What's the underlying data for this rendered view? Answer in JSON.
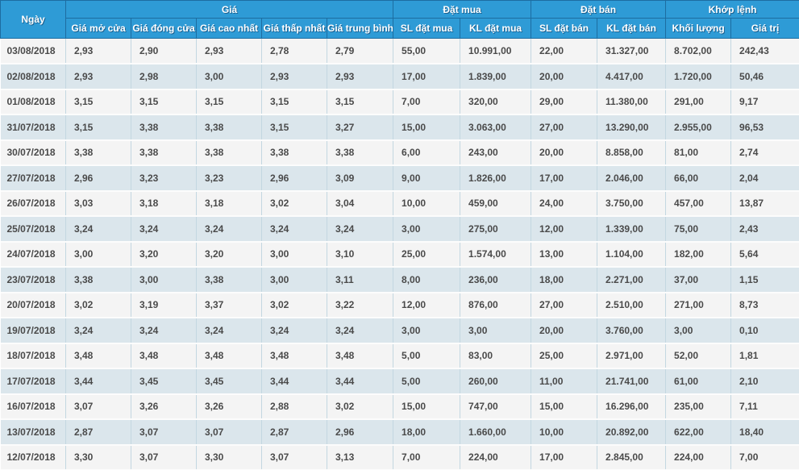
{
  "colors": {
    "header_bg": "#2e9bd6",
    "header_text": "#ffffff",
    "header_border": "#1d6da1",
    "row_odd_bg": "#f4f4f4",
    "row_even_bg": "#dbe6ec",
    "cell_border": "#c3d7e1",
    "body_text": "#4a4a4a"
  },
  "table": {
    "header_groups": [
      {
        "label": "Ngày",
        "colspan": 1,
        "rowspan": 2
      },
      {
        "label": "Giá",
        "colspan": 5,
        "rowspan": 1
      },
      {
        "label": "Đặt mua",
        "colspan": 2,
        "rowspan": 1
      },
      {
        "label": "Đặt bán",
        "colspan": 2,
        "rowspan": 1
      },
      {
        "label": "Khớp lệnh",
        "colspan": 2,
        "rowspan": 1
      }
    ],
    "sub_headers": [
      "Giá mở cửa",
      "Giá đóng cửa",
      "Giá cao nhất",
      "Giá thấp nhất",
      "Giá trung bình",
      "SL đặt mua",
      "KL đặt mua",
      "SL đặt bán",
      "KL đặt bán",
      "Khối lượng",
      "Giá trị"
    ],
    "rows": [
      [
        "03/08/2018",
        "2,93",
        "2,90",
        "2,93",
        "2,78",
        "2,79",
        "55,00",
        "10.991,00",
        "22,00",
        "31.327,00",
        "8.702,00",
        "242,43"
      ],
      [
        "02/08/2018",
        "2,93",
        "2,98",
        "3,00",
        "2,93",
        "2,93",
        "17,00",
        "1.839,00",
        "20,00",
        "4.417,00",
        "1.720,00",
        "50,46"
      ],
      [
        "01/08/2018",
        "3,15",
        "3,15",
        "3,15",
        "3,15",
        "3,15",
        "7,00",
        "320,00",
        "29,00",
        "11.380,00",
        "291,00",
        "9,17"
      ],
      [
        "31/07/2018",
        "3,15",
        "3,38",
        "3,38",
        "3,15",
        "3,27",
        "15,00",
        "3.063,00",
        "27,00",
        "13.290,00",
        "2.955,00",
        "96,53"
      ],
      [
        "30/07/2018",
        "3,38",
        "3,38",
        "3,38",
        "3,38",
        "3,38",
        "6,00",
        "243,00",
        "20,00",
        "8.858,00",
        "81,00",
        "2,74"
      ],
      [
        "27/07/2018",
        "2,96",
        "3,23",
        "3,23",
        "2,96",
        "3,09",
        "9,00",
        "1.826,00",
        "17,00",
        "2.046,00",
        "66,00",
        "2,04"
      ],
      [
        "26/07/2018",
        "3,03",
        "3,18",
        "3,18",
        "3,02",
        "3,04",
        "10,00",
        "459,00",
        "24,00",
        "3.750,00",
        "457,00",
        "13,87"
      ],
      [
        "25/07/2018",
        "3,24",
        "3,24",
        "3,24",
        "3,24",
        "3,24",
        "3,00",
        "275,00",
        "12,00",
        "1.339,00",
        "75,00",
        "2,43"
      ],
      [
        "24/07/2018",
        "3,00",
        "3,20",
        "3,20",
        "3,00",
        "3,10",
        "25,00",
        "1.574,00",
        "13,00",
        "1.104,00",
        "182,00",
        "5,64"
      ],
      [
        "23/07/2018",
        "3,38",
        "3,00",
        "3,38",
        "3,00",
        "3,11",
        "8,00",
        "236,00",
        "18,00",
        "2.271,00",
        "37,00",
        "1,15"
      ],
      [
        "20/07/2018",
        "3,02",
        "3,19",
        "3,37",
        "3,02",
        "3,22",
        "12,00",
        "876,00",
        "27,00",
        "2.510,00",
        "271,00",
        "8,73"
      ],
      [
        "19/07/2018",
        "3,24",
        "3,24",
        "3,24",
        "3,24",
        "3,24",
        "3,00",
        "3,00",
        "20,00",
        "3.760,00",
        "3,00",
        "0,10"
      ],
      [
        "18/07/2018",
        "3,48",
        "3,48",
        "3,48",
        "3,48",
        "3,48",
        "5,00",
        "83,00",
        "25,00",
        "2.971,00",
        "52,00",
        "1,81"
      ],
      [
        "17/07/2018",
        "3,44",
        "3,45",
        "3,45",
        "3,44",
        "3,44",
        "5,00",
        "260,00",
        "11,00",
        "21.741,00",
        "61,00",
        "2,10"
      ],
      [
        "16/07/2018",
        "3,07",
        "3,26",
        "3,26",
        "2,88",
        "3,02",
        "15,00",
        "747,00",
        "15,00",
        "16.296,00",
        "235,00",
        "7,11"
      ],
      [
        "13/07/2018",
        "2,87",
        "3,07",
        "3,07",
        "2,87",
        "2,96",
        "18,00",
        "1.660,00",
        "10,00",
        "20.892,00",
        "622,00",
        "18,40"
      ],
      [
        "12/07/2018",
        "3,30",
        "3,07",
        "3,30",
        "3,07",
        "3,13",
        "7,00",
        "224,00",
        "17,00",
        "2.845,00",
        "224,00",
        "7,00"
      ]
    ]
  }
}
